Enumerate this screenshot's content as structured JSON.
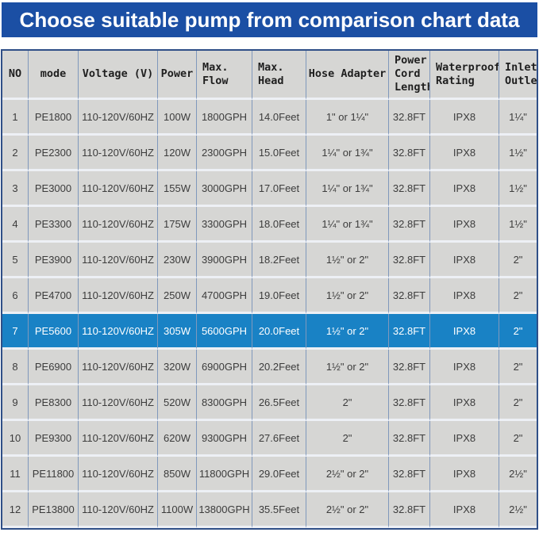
{
  "banner": {
    "title": "Choose suitable pump from comparison chart data"
  },
  "colors": {
    "banner_bg": "#1b4fa4",
    "banner_text": "#ffffff",
    "highlight_bg": "#1982c5",
    "highlight_text": "#ffffff",
    "cell_bg": "#d6d6d4",
    "cell_text": "#3c3c3c",
    "grid_vertical": "#8098bc",
    "grid_horizontal": "#edf0f5",
    "outer_border": "#2f4f87"
  },
  "chart_data": {
    "type": "table",
    "title": "Choose suitable pump from comparison chart data",
    "columns": [
      "NO",
      "mode",
      "Voltage (V)",
      "Power",
      "Max.\nFlow",
      "Max.\nHead",
      "Hose Adapter",
      "Power\nCord\nLength",
      "Waterproof\nRating",
      "Inlet/\nOutlet"
    ],
    "highlighted_row_no": "7",
    "rows": [
      {
        "highlight": false,
        "cells": [
          "1",
          "PE1800",
          "110-120V/60HZ",
          "100W",
          "1800GPH",
          "14.0Feet",
          "1\" or 1¼\"",
          "32.8FT",
          "IPX8",
          "1¼\""
        ]
      },
      {
        "highlight": false,
        "cells": [
          "2",
          "PE2300",
          "110-120V/60HZ",
          "120W",
          "2300GPH",
          "15.0Feet",
          "1¼\" or 1¾\"",
          "32.8FT",
          "IPX8",
          "1½\""
        ]
      },
      {
        "highlight": false,
        "cells": [
          "3",
          "PE3000",
          "110-120V/60HZ",
          "155W",
          "3000GPH",
          "17.0Feet",
          "1¼\" or 1¾\"",
          "32.8FT",
          "IPX8",
          "1½\""
        ]
      },
      {
        "highlight": false,
        "cells": [
          "4",
          "PE3300",
          "110-120V/60HZ",
          "175W",
          "3300GPH",
          "18.0Feet",
          "1¼\" or 1¾\"",
          "32.8FT",
          "IPX8",
          "1½\""
        ]
      },
      {
        "highlight": false,
        "cells": [
          "5",
          "PE3900",
          "110-120V/60HZ",
          "230W",
          "3900GPH",
          "18.2Feet",
          "1½\" or 2\"",
          "32.8FT",
          "IPX8",
          "2\""
        ]
      },
      {
        "highlight": false,
        "cells": [
          "6",
          "PE4700",
          "110-120V/60HZ",
          "250W",
          "4700GPH",
          "19.0Feet",
          "1½\" or 2\"",
          "32.8FT",
          "IPX8",
          "2\""
        ]
      },
      {
        "highlight": true,
        "cells": [
          "7",
          "PE5600",
          "110-120V/60HZ",
          "305W",
          "5600GPH",
          "20.0Feet",
          "1½\" or 2\"",
          "32.8FT",
          "IPX8",
          "2\""
        ]
      },
      {
        "highlight": false,
        "cells": [
          "8",
          "PE6900",
          "110-120V/60HZ",
          "320W",
          "6900GPH",
          "20.2Feet",
          "1½\" or 2\"",
          "32.8FT",
          "IPX8",
          "2\""
        ]
      },
      {
        "highlight": false,
        "cells": [
          "9",
          "PE8300",
          "110-120V/60HZ",
          "520W",
          "8300GPH",
          "26.5Feet",
          "2\"",
          "32.8FT",
          "IPX8",
          "2\""
        ]
      },
      {
        "highlight": false,
        "cells": [
          "10",
          "PE9300",
          "110-120V/60HZ",
          "620W",
          "9300GPH",
          "27.6Feet",
          "2\"",
          "32.8FT",
          "IPX8",
          "2\""
        ]
      },
      {
        "highlight": false,
        "cells": [
          "11",
          "PE11800",
          "110-120V/60HZ",
          "850W",
          "11800GPH",
          "29.0Feet",
          "2½\" or 2\"",
          "32.8FT",
          "IPX8",
          "2½\""
        ]
      },
      {
        "highlight": false,
        "cells": [
          "12",
          "PE13800",
          "110-120V/60HZ",
          "1100W",
          "13800GPH",
          "35.5Feet",
          "2½\" or 2\"",
          "32.8FT",
          "IPX8",
          "2½\""
        ]
      }
    ]
  }
}
